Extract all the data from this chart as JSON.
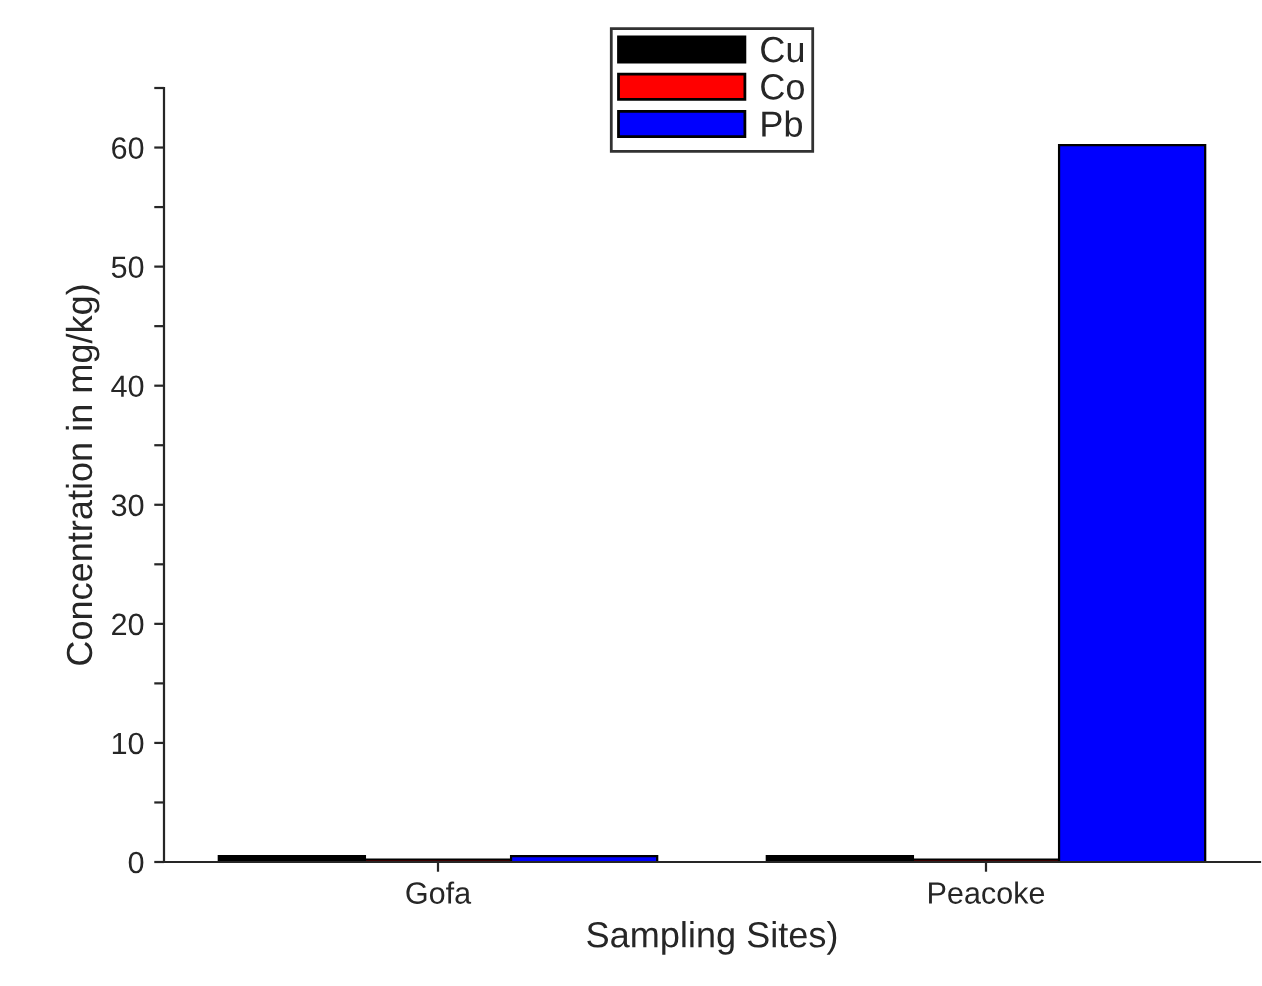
{
  "chart_data": {
    "type": "bar",
    "xlabel": "Sampling Sites)",
    "ylabel": "Concentration in mg/kg)",
    "categories": [
      "Gofa",
      "Peacoke"
    ],
    "series": [
      {
        "name": "Cu",
        "color": "#000000",
        "values": [
          0.5,
          0.5
        ]
      },
      {
        "name": "Co",
        "color": "#ff0000",
        "values": [
          0.2,
          0.2
        ]
      },
      {
        "name": "Pb",
        "color": "#0000ff",
        "values": [
          0.5,
          60.2
        ]
      }
    ],
    "ylim": [
      0,
      65
    ],
    "yticks": [
      0,
      {
        "value": 5,
        "label": null
      },
      10,
      {
        "value": 15,
        "label": null
      },
      20,
      {
        "value": 25,
        "label": null
      },
      30,
      {
        "value": 35,
        "label": null
      },
      40,
      {
        "value": 45,
        "label": null
      },
      50,
      {
        "value": 55,
        "label": null
      },
      60,
      {
        "value": 65,
        "label": null
      }
    ],
    "legend": "top",
    "grid": false
  }
}
